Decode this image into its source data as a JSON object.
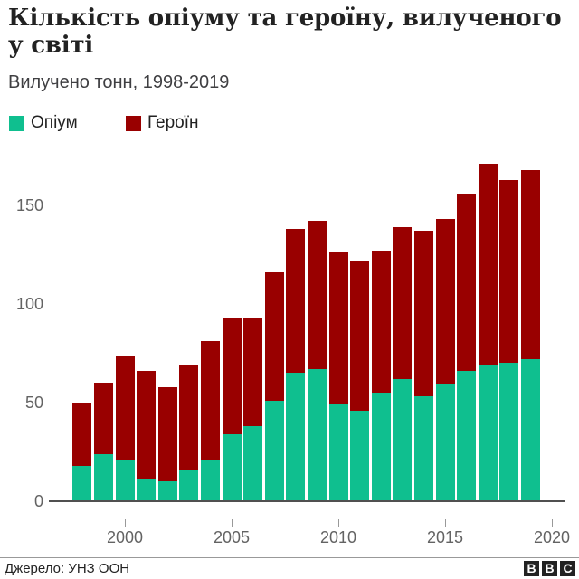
{
  "header": {
    "title": "Кількість опіуму та героїну, вилученого у світі",
    "subtitle": "Вилучено тонн, 1998-2019"
  },
  "legend": [
    {
      "label": "Опіум",
      "color": "#0fbf8f"
    },
    {
      "label": "Героїн",
      "color": "#990000"
    }
  ],
  "footer": {
    "source": "Джерело: УНЗ ООН",
    "logo_letters": [
      "B",
      "B",
      "C"
    ]
  },
  "chart_data": {
    "type": "bar",
    "stacked": true,
    "title": "Кількість опіуму та героїну, вилученого у світі",
    "subtitle": "Вилучено тонн, 1998-2019",
    "xlabel": "",
    "ylabel": "Вилучено тонн",
    "ylim": [
      0,
      175
    ],
    "yticks": [
      0,
      50,
      100,
      150
    ],
    "xticks": [
      2000,
      2005,
      2010,
      2015,
      2020
    ],
    "grid": false,
    "legend_position": "top-left",
    "categories": [
      1998,
      1999,
      2000,
      2001,
      2002,
      2003,
      2004,
      2005,
      2006,
      2007,
      2008,
      2009,
      2010,
      2011,
      2012,
      2013,
      2014,
      2015,
      2016,
      2017,
      2018,
      2019
    ],
    "series": [
      {
        "name": "Опіум",
        "color": "#0fbf8f",
        "values": [
          18,
          24,
          21,
          11,
          10,
          16,
          21,
          34,
          38,
          51,
          65,
          67,
          49,
          46,
          55,
          62,
          53,
          59,
          66,
          69,
          70,
          72
        ]
      },
      {
        "name": "Героїн",
        "color": "#990000",
        "values": [
          32,
          36,
          53,
          55,
          48,
          53,
          60,
          59,
          55,
          65,
          73,
          75,
          77,
          76,
          72,
          77,
          84,
          84,
          90,
          102,
          93,
          96
        ]
      }
    ],
    "source": "Джерело: УНЗ ООН"
  }
}
